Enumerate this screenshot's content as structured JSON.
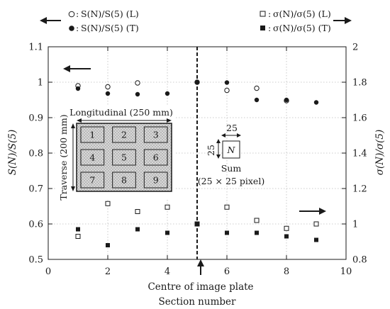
{
  "chart_data": {
    "type": "scatter",
    "xlabel": "Section number",
    "ylabel_left": "S(N)/S(5)",
    "ylabel_right": "σ(N)/σ(5)",
    "xlim": [
      0,
      10
    ],
    "ylim_left": [
      0.5,
      1.1
    ],
    "ylim_right": [
      0.8,
      2.0
    ],
    "x_ticks": [
      "0",
      "2",
      "4",
      "6",
      "8",
      "10"
    ],
    "y_left_ticks": [
      "0.5",
      "0.6",
      "0.7",
      "0.8",
      "0.9",
      "1",
      "1.1"
    ],
    "y_right_ticks": [
      "0.8",
      "1",
      "1.2",
      "1.4",
      "1.6",
      "1.8",
      "2"
    ],
    "grid": true,
    "series": [
      {
        "name": "S(N)/S(5) (L)",
        "axis": "left",
        "marker": "open-circle",
        "x": [
          1,
          2,
          3,
          4,
          5,
          6,
          7,
          8,
          9
        ],
        "y": [
          0.99,
          0.987,
          0.998,
          null,
          1.0,
          0.977,
          0.983,
          0.948,
          null
        ]
      },
      {
        "name": "S(N)/S(5) (T)",
        "axis": "left",
        "marker": "filled-circle",
        "x": [
          1,
          2,
          3,
          4,
          5,
          6,
          7,
          8,
          9
        ],
        "y": [
          0.982,
          0.968,
          0.966,
          0.968,
          1.0,
          0.999,
          0.95,
          0.95,
          0.943
        ]
      },
      {
        "name": "σ(N)/σ(5) (L)",
        "axis": "right",
        "marker": "open-square",
        "x": [
          1,
          2,
          3,
          4,
          5,
          6,
          7,
          8,
          9
        ],
        "y": [
          0.93,
          1.115,
          1.07,
          1.095,
          1.0,
          1.095,
          1.02,
          0.975,
          1.0
        ]
      },
      {
        "name": "σ(N)/σ(5) (T)",
        "axis": "right",
        "marker": "filled-square",
        "x": [
          1,
          2,
          3,
          4,
          5,
          6,
          7,
          8,
          9
        ],
        "y": [
          0.97,
          0.88,
          0.97,
          0.95,
          1.0,
          0.95,
          0.95,
          0.93,
          0.91
        ]
      }
    ],
    "legend_left": [
      "S(N)/S(5) (L)",
      "S(N)/S(5) (T)"
    ],
    "legend_right": [
      "σ(N)/σ(5) (L)",
      "σ(N)/σ(5) (T)"
    ],
    "legend_left_prefix": ":",
    "legend_right_prefix": ":",
    "centre_line_x": 5,
    "centre_label": "Centre of image plate",
    "inset": {
      "longitudinal_label": "Longitudinal (250 mm)",
      "traverse_label": "Traverse (200 mm)",
      "cells": [
        "1",
        "2",
        "3",
        "4",
        "5",
        "6",
        "7",
        "8",
        "9"
      ]
    },
    "sum_box": {
      "width_label": "25",
      "height_label": "25",
      "cell_label": "N",
      "sum_label": "Sum",
      "sum_detail": "(25 × 25 pixel)"
    }
  }
}
